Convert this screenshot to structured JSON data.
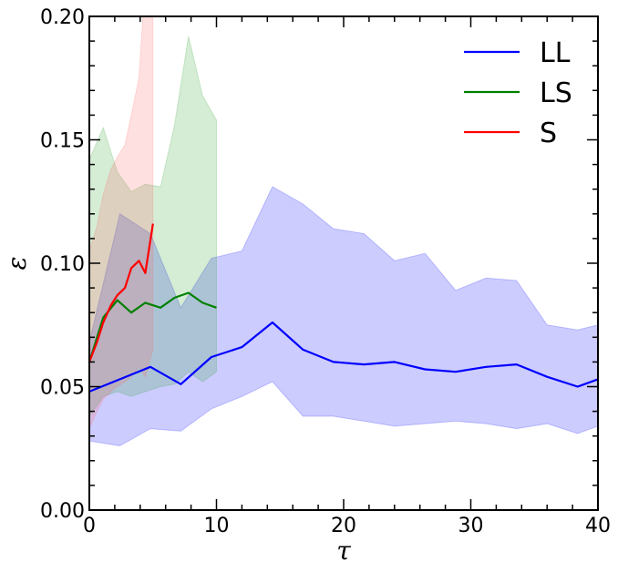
{
  "chart_data": {
    "type": "line",
    "xlabel": "τ",
    "ylabel": "ε",
    "xlim": [
      0,
      40
    ],
    "ylim": [
      0,
      0.2
    ],
    "xticks": [
      "0",
      "10",
      "20",
      "30",
      "40"
    ],
    "yticks": [
      "0.00",
      "0.05",
      "0.10",
      "0.15",
      "0.20"
    ],
    "grid": false,
    "legend_position": "top-right",
    "series": [
      {
        "name": "LL",
        "color": "#0000ff",
        "band_color": "#0000ff",
        "x": [
          0,
          2.4,
          4.8,
          7.2,
          9.6,
          12.0,
          14.4,
          16.8,
          19.2,
          21.6,
          24.0,
          26.4,
          28.8,
          31.2,
          33.6,
          36.0,
          38.4,
          40.0
        ],
        "y": [
          0.048,
          0.053,
          0.058,
          0.051,
          0.062,
          0.066,
          0.076,
          0.065,
          0.06,
          0.059,
          0.06,
          0.057,
          0.056,
          0.058,
          0.059,
          0.054,
          0.05,
          0.053
        ],
        "lower": [
          0.028,
          0.026,
          0.033,
          0.032,
          0.041,
          0.046,
          0.052,
          0.038,
          0.038,
          0.036,
          0.034,
          0.035,
          0.036,
          0.035,
          0.033,
          0.035,
          0.031,
          0.034
        ],
        "upper": [
          0.068,
          0.12,
          0.112,
          0.082,
          0.102,
          0.105,
          0.131,
          0.124,
          0.114,
          0.112,
          0.101,
          0.104,
          0.089,
          0.094,
          0.093,
          0.075,
          0.073,
          0.075
        ]
      },
      {
        "name": "LS",
        "color": "#008000",
        "band_color": "#2ca02c",
        "x": [
          0,
          1.1,
          2.2,
          3.3,
          4.4,
          5.6,
          6.7,
          7.8,
          8.9,
          10.0
        ],
        "y": [
          0.06,
          0.078,
          0.085,
          0.08,
          0.084,
          0.082,
          0.086,
          0.088,
          0.084,
          0.082
        ],
        "lower": [
          0.038,
          0.046,
          0.048,
          0.046,
          0.048,
          0.05,
          0.051,
          0.056,
          0.052,
          0.056
        ],
        "upper": [
          0.142,
          0.155,
          0.137,
          0.129,
          0.132,
          0.131,
          0.156,
          0.192,
          0.168,
          0.158
        ]
      },
      {
        "name": "S",
        "color": "#ff0000",
        "band_color": "#ff6666",
        "x": [
          0,
          0.6,
          1.1,
          1.7,
          2.2,
          2.8,
          3.3,
          3.9,
          4.4,
          5.0
        ],
        "y": [
          0.06,
          0.068,
          0.076,
          0.083,
          0.087,
          0.09,
          0.098,
          0.101,
          0.096,
          0.116
        ],
        "lower": [
          0.033,
          0.04,
          0.045,
          0.048,
          0.05,
          0.052,
          0.054,
          0.058,
          0.054,
          0.065
        ],
        "upper": [
          0.105,
          0.115,
          0.128,
          0.138,
          0.143,
          0.148,
          0.16,
          0.175,
          0.215,
          0.23
        ]
      }
    ]
  }
}
